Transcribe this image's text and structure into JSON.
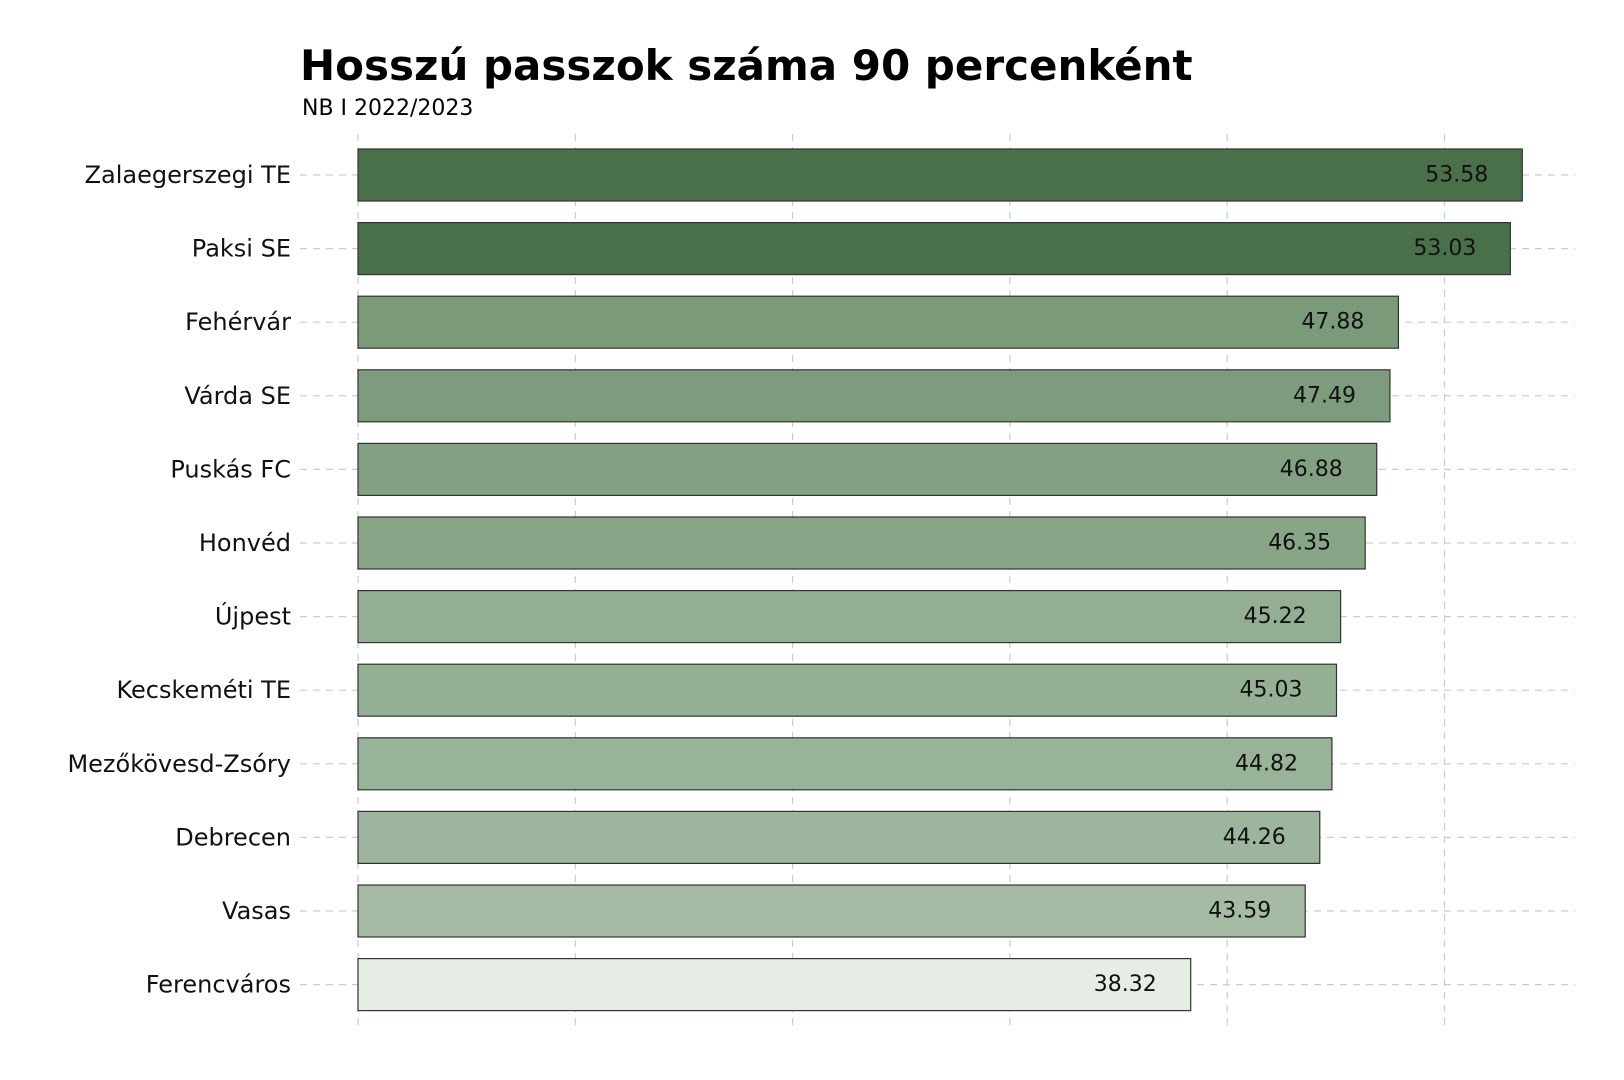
{
  "chart_data": {
    "type": "bar",
    "orientation": "horizontal",
    "title": "Hosszú passzok száma 90 percenként",
    "subtitle": "NB I 2022/2023",
    "xlabel": "",
    "ylabel": "",
    "xlim": [
      0,
      56
    ],
    "grid": true,
    "legend": "none",
    "categories": [
      "Zalaegerszegi TE",
      "Paksi SE",
      "Fehérvár",
      "Várda SE",
      "Puskás FC",
      "Honvéd",
      "Újpest",
      "Kecskeméti TE",
      "Mezőkövesd-Zsóry",
      "Debrecen",
      "Vasas",
      "Ferencváros"
    ],
    "values": [
      53.58,
      53.03,
      47.88,
      47.49,
      46.88,
      46.35,
      45.22,
      45.03,
      44.82,
      44.26,
      43.59,
      38.32
    ],
    "value_labels": [
      "53.58",
      "53.03",
      "47.88",
      "47.49",
      "46.88",
      "46.35",
      "45.22",
      "45.03",
      "44.82",
      "44.26",
      "43.59",
      "38.32"
    ],
    "colors": [
      "#4a7049",
      "#4a7049",
      "#7b9a7a",
      "#7e9c7d",
      "#83a082",
      "#89a588",
      "#93ae93",
      "#96b095",
      "#99b398",
      "#9db59c",
      "#a5bba4",
      "#e6ede5"
    ],
    "bar_edge_color": "#333333",
    "grid_color": "#cccccc"
  }
}
